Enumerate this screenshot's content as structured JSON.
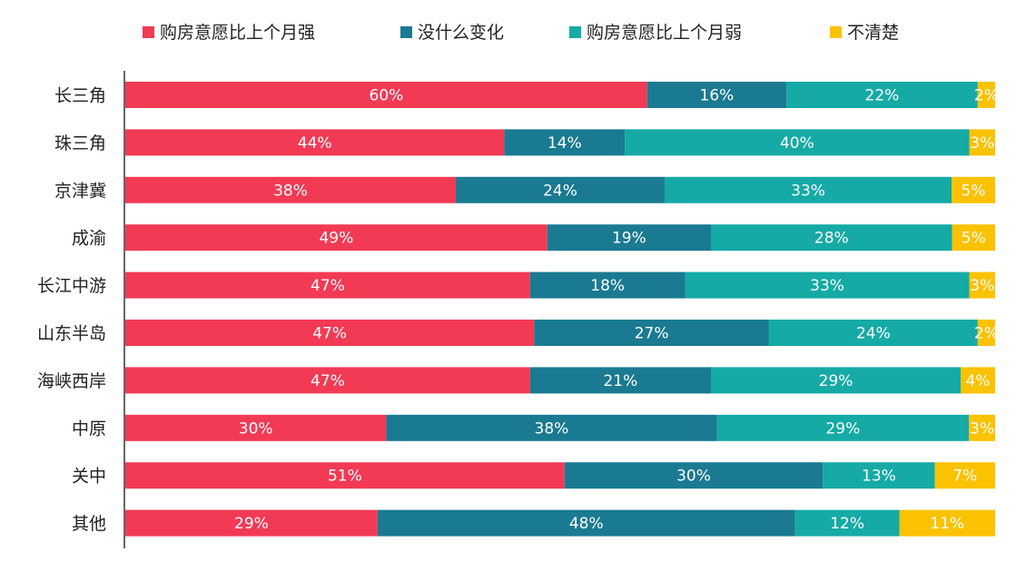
{
  "chart_data": {
    "type": "bar",
    "orientation": "horizontal",
    "stacked": true,
    "percent": true,
    "legend_position": "top",
    "grid": false,
    "categories": [
      "长三角",
      "珠三角",
      "京津冀",
      "成渝",
      "长江中游",
      "山东半岛",
      "海峡西岸",
      "中原",
      "关中",
      "其他"
    ],
    "series": [
      {
        "name": "购房意愿比上个月强",
        "color": "#f23a55",
        "values": [
          60,
          44,
          38,
          49,
          47,
          47,
          47,
          30,
          51,
          29
        ]
      },
      {
        "name": "没什么变化",
        "color": "#1a7a92",
        "values": [
          16,
          14,
          24,
          19,
          18,
          27,
          21,
          38,
          30,
          48
        ]
      },
      {
        "name": "购房意愿比上个月弱",
        "color": "#15aaa6",
        "values": [
          22,
          40,
          33,
          28,
          33,
          24,
          29,
          29,
          13,
          12
        ]
      },
      {
        "name": "不清楚",
        "color": "#fbc200",
        "values": [
          2,
          3,
          5,
          5,
          3,
          2,
          4,
          3,
          7,
          11
        ]
      }
    ],
    "value_suffix": "%"
  }
}
